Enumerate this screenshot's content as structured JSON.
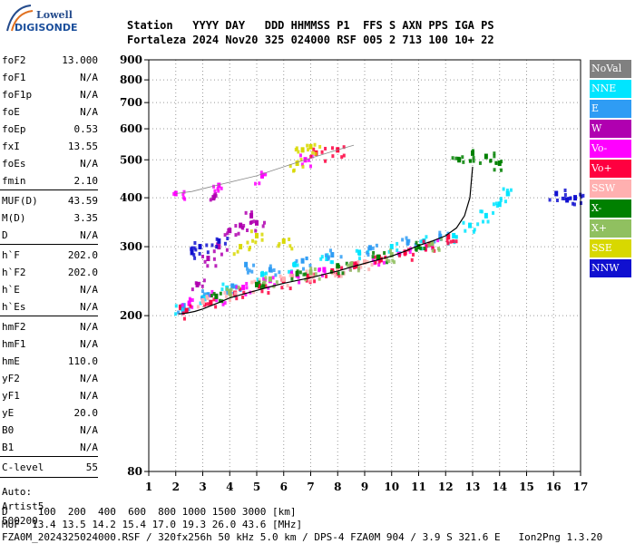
{
  "logo": {
    "line1": "Lowell",
    "line2": "DIGISONDE"
  },
  "header": {
    "line1": "Station   YYYY DAY   DDD HHMMSS P1  FFS S AXN PPS IGA PS",
    "line2": "Fortaleza 2024 Nov20 325 024000 RSF 005 2 713 100 10+ 22"
  },
  "params": [
    {
      "k": "foF2",
      "v": "13.000"
    },
    {
      "k": "foF1",
      "v": "N/A"
    },
    {
      "k": "foF1p",
      "v": "N/A"
    },
    {
      "k": "foE",
      "v": "N/A"
    },
    {
      "k": "foEp",
      "v": "0.53"
    },
    {
      "k": "fxI",
      "v": "13.55"
    },
    {
      "k": "foEs",
      "v": "N/A"
    },
    {
      "k": "fmin",
      "v": "2.10"
    },
    {
      "k": "MUF(D)",
      "v": "43.59"
    },
    {
      "k": "M(D)",
      "v": "3.35"
    },
    {
      "k": "D",
      "v": "N/A"
    },
    {
      "k": "h`F",
      "v": "202.0"
    },
    {
      "k": "h`F2",
      "v": "202.0"
    },
    {
      "k": "h`E",
      "v": "N/A"
    },
    {
      "k": "h`Es",
      "v": "N/A"
    },
    {
      "k": "hmF2",
      "v": "N/A"
    },
    {
      "k": "hmF1",
      "v": "N/A"
    },
    {
      "k": "hmE",
      "v": "110.0"
    },
    {
      "k": "yF2",
      "v": "N/A"
    },
    {
      "k": "yF1",
      "v": "N/A"
    },
    {
      "k": "yE",
      "v": "20.0"
    },
    {
      "k": "B0",
      "v": "N/A"
    },
    {
      "k": "B1",
      "v": "N/A"
    },
    {
      "k": "C-level",
      "v": "55"
    }
  ],
  "auto": {
    "line1": "Auto:",
    "line2": "Artist5",
    "line3": "500200"
  },
  "legend": [
    {
      "label": "NoVal",
      "color": "#808080"
    },
    {
      "label": "NNE",
      "color": "#00e5ff"
    },
    {
      "label": "E",
      "color": "#2f9cf4"
    },
    {
      "label": "W",
      "color": "#b000b0"
    },
    {
      "label": "Vo-",
      "color": "#ff00ff"
    },
    {
      "label": "Vo+",
      "color": "#ff0040"
    },
    {
      "label": "SSW",
      "color": "#ffb0b0"
    },
    {
      "label": "X-",
      "color": "#008000"
    },
    {
      "label": "X+",
      "color": "#90c060"
    },
    {
      "label": "SSE",
      "color": "#d8d800"
    },
    {
      "label": "NNW",
      "color": "#1010d0"
    }
  ],
  "footer": {
    "line1": "D     100  200  400  600  800 1000 1500 3000 [km]",
    "line2": "MUF  13.4 13.5 14.2 15.4 17.0 19.3 26.0 43.6 [MHz]",
    "line3": "FZA0M_2024325024000.RSF / 320fx256h 50 kHz 5.0 km / DPS-4 FZA0M 904 / 3.9 S 321.6 E   Ion2Png 1.3.20"
  },
  "chart_data": {
    "type": "scatter",
    "title": "",
    "xlabel": "",
    "ylabel": "",
    "xlim": [
      1,
      17
    ],
    "ylim": [
      80,
      900
    ],
    "y_scale": "log",
    "x_ticks": [
      1,
      2,
      3,
      4,
      5,
      6,
      7,
      8,
      9,
      10,
      11,
      12,
      13,
      14,
      15,
      16,
      17
    ],
    "y_ticks": [
      80,
      200,
      300,
      400,
      500,
      600,
      700,
      800,
      900
    ],
    "grid": true,
    "traces": [
      {
        "name": "O-trace",
        "x": [
          2.1,
          2.4,
          2.7,
          3.0,
          3.3,
          3.6,
          4.0,
          4.4,
          4.8,
          5.2,
          5.6,
          6.0,
          6.5,
          7.0,
          7.5,
          8.0,
          8.5,
          9.0,
          9.5,
          10.0,
          10.5,
          11.0,
          11.5,
          12.0,
          12.4,
          12.7,
          12.9,
          13.0
        ],
        "y": [
          202,
          203,
          205,
          208,
          212,
          216,
          222,
          226,
          230,
          234,
          238,
          242,
          246,
          250,
          255,
          260,
          266,
          272,
          278,
          284,
          292,
          302,
          310,
          320,
          335,
          360,
          400,
          480
        ]
      },
      {
        "name": "second-hop",
        "x": [
          2.0,
          2.6,
          3.2,
          3.8,
          4.4,
          5.0,
          5.6,
          6.2,
          6.8,
          7.4,
          8.0,
          8.6
        ],
        "y": [
          410,
          415,
          425,
          435,
          445,
          455,
          470,
          485,
          500,
          515,
          530,
          545
        ]
      }
    ],
    "scatter_groups": [
      {
        "name": "NNE",
        "x": [
          2.2,
          3.0,
          3.9,
          5.2,
          6.4,
          7.6,
          8.8,
          10.0,
          11.2,
          12.3,
          12.9,
          13.5,
          14.0,
          14.3
        ],
        "y": [
          210,
          222,
          235,
          255,
          270,
          280,
          290,
          300,
          310,
          320,
          340,
          360,
          385,
          410
        ]
      },
      {
        "name": "E",
        "x": [
          2.3,
          3.2,
          4.1,
          4.6,
          5.5,
          6.7,
          7.8,
          9.2,
          10.6,
          11.8
        ],
        "y": [
          212,
          226,
          238,
          270,
          262,
          276,
          286,
          298,
          308,
          318
        ]
      },
      {
        "name": "W",
        "x": [
          2.8,
          3.2,
          3.6,
          4.0,
          4.4,
          4.8,
          5.0,
          3.4
        ],
        "y": [
          240,
          280,
          300,
          330,
          340,
          360,
          345,
          400
        ]
      },
      {
        "name": "Vo-",
        "x": [
          2.5,
          3.5,
          4.5,
          5.5,
          6.5,
          7.5,
          8.5,
          9.5,
          10.5,
          11.5,
          2.0,
          3.6,
          5.2,
          6.8
        ],
        "y": [
          215,
          224,
          236,
          246,
          254,
          262,
          270,
          280,
          290,
          305,
          410,
          430,
          455,
          500
        ]
      },
      {
        "name": "Vo+",
        "x": [
          2.4,
          3.3,
          4.2,
          5.1,
          6.0,
          6.9,
          7.8,
          8.7,
          9.6,
          10.5,
          11.4,
          12.1,
          7.2,
          8.0
        ],
        "y": [
          206,
          216,
          228,
          238,
          246,
          252,
          260,
          268,
          278,
          290,
          304,
          318,
          520,
          530
        ]
      },
      {
        "name": "SSW",
        "x": [
          3.0,
          4.0,
          5.0,
          6.0,
          7.0,
          8.0,
          9.0
        ],
        "y": [
          218,
          228,
          240,
          248,
          256,
          264,
          274
        ]
      },
      {
        "name": "X-",
        "x": [
          3.5,
          5.0,
          6.5,
          8.0,
          9.5,
          11.0,
          12.5,
          13.0,
          13.5,
          14.0
        ],
        "y": [
          224,
          240,
          256,
          268,
          282,
          300,
          500,
          520,
          510,
          490
        ]
      },
      {
        "name": "X+",
        "x": [
          4.0,
          5.5,
          7.0,
          8.5,
          10.0,
          11.5
        ],
        "y": [
          230,
          248,
          258,
          270,
          286,
          306
        ]
      },
      {
        "name": "SSE",
        "x": [
          6.5,
          6.7,
          7.0,
          4.4,
          5.0,
          6.0
        ],
        "y": [
          490,
          530,
          540,
          300,
          320,
          310
        ]
      },
      {
        "name": "NNW",
        "x": [
          2.6,
          2.9,
          3.6,
          16.1,
          16.5,
          16.8
        ],
        "y": [
          290,
          300,
          310,
          410,
          395,
          400
        ]
      }
    ]
  }
}
